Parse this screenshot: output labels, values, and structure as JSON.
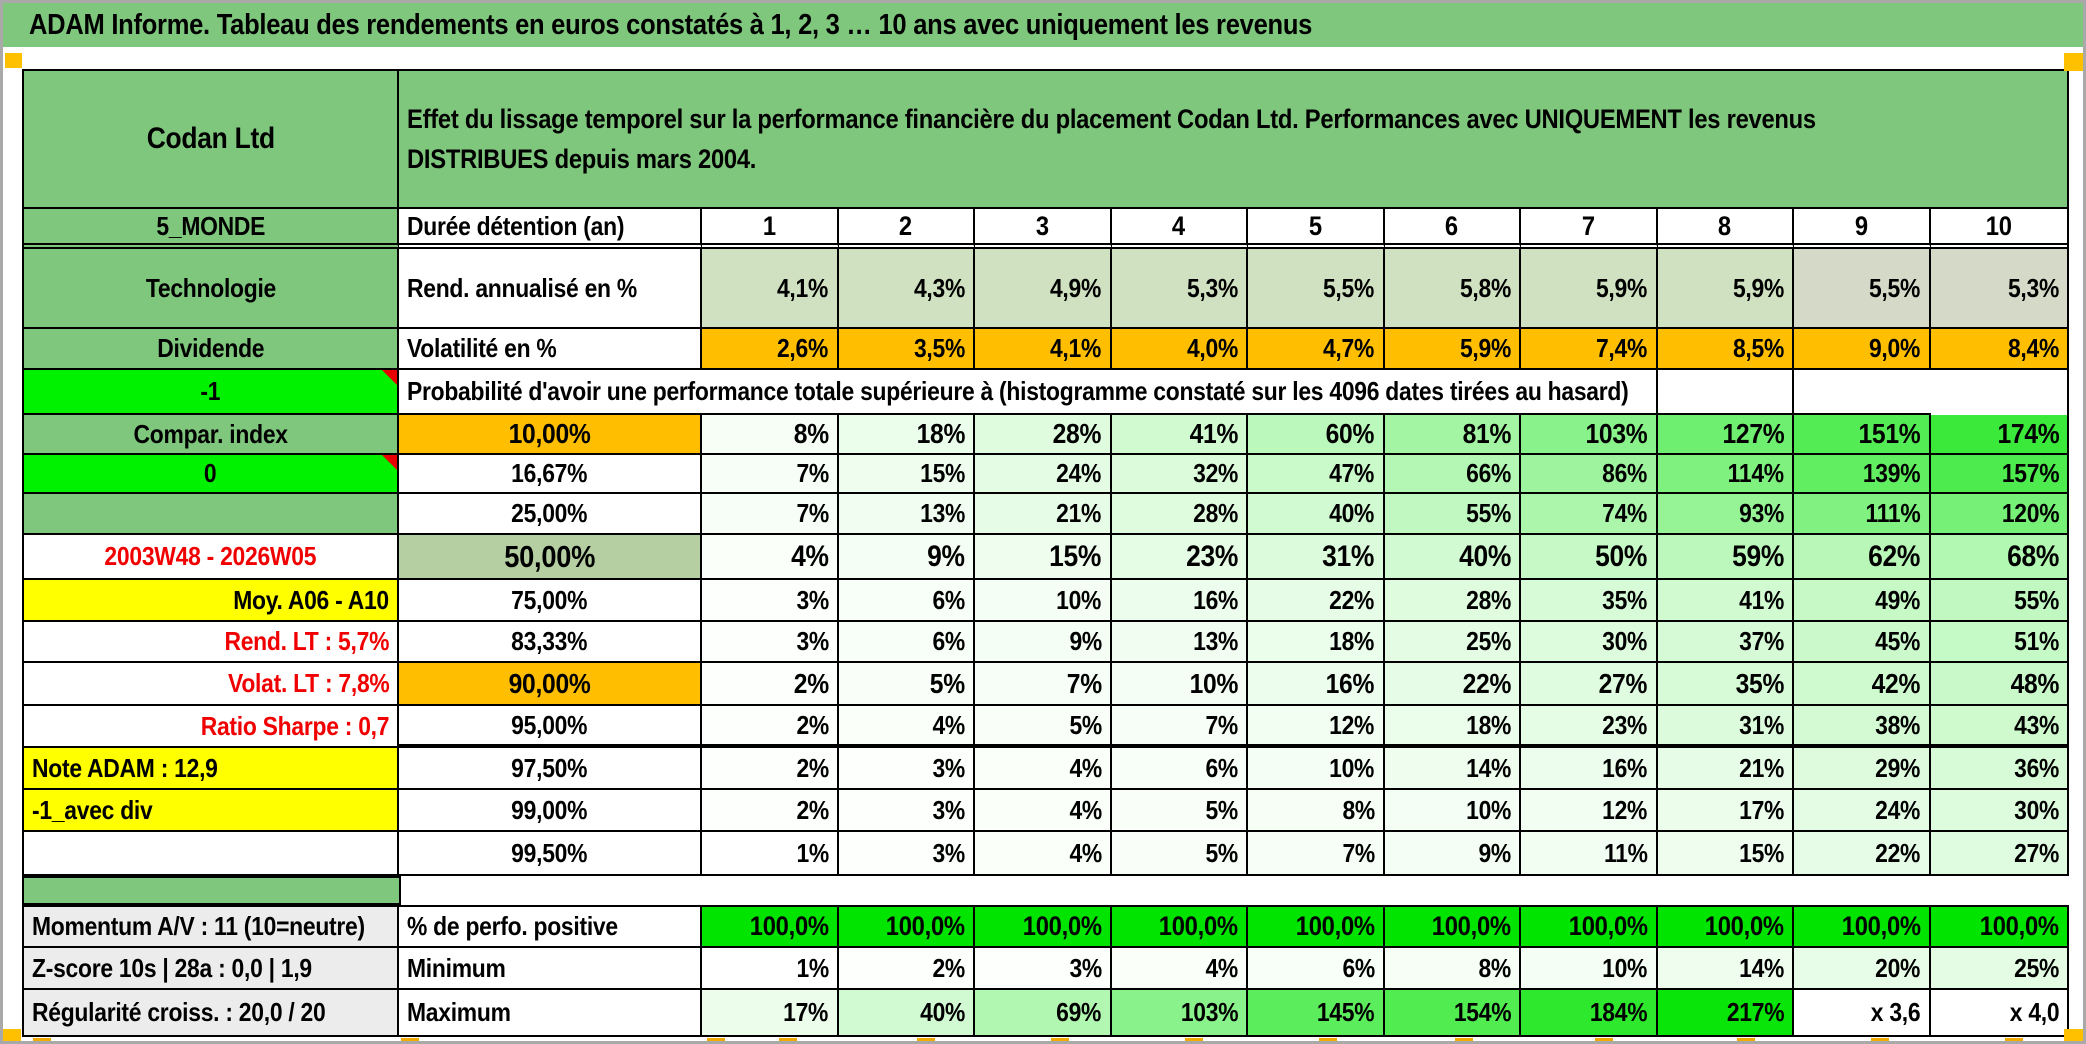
{
  "window": {
    "title": "ADAM Informe. Tableau des rendements en euros constatés à 1, 2, 3 … 10 ans avec uniquement les revenus"
  },
  "header": {
    "company": "Codan Ltd",
    "description": "Effet du lissage temporel sur la performance financière du placement Codan Ltd. Performances avec UNIQUEMENT les revenus DISTRIBUES depuis mars 2004."
  },
  "meta": {
    "index_code": "5_MONDE",
    "sector": "Technologie",
    "style": "Dividende",
    "flag_top": "-1",
    "compare_label": "Compar. index",
    "flag_zero": "0",
    "period": "2003W48 - 2026W05",
    "avg_label": "Moy. A06 - A10",
    "rend_lt": "Rend. LT :   5,7%",
    "volat_lt": "Volat. LT :   7,8%",
    "sharpe": "Ratio Sharpe :   0,7",
    "note_adam": "Note ADAM : 12,9",
    "avec_div": "-1_avec div",
    "momentum": "Momentum A/V : 11 (10=neutre)",
    "zscore": "Z-score 10s | 28a : 0,0 | 1,9",
    "regularite": "Régularité croiss. : 20,0 / 20"
  },
  "table": {
    "duration_label": "Durée détention (an)",
    "years": [
      "1",
      "2",
      "3",
      "4",
      "5",
      "6",
      "7",
      "8",
      "9",
      "10"
    ],
    "annualized_label": "Rend. annualisé en %",
    "annualized": [
      "4,1%",
      "4,3%",
      "4,9%",
      "5,3%",
      "5,5%",
      "5,8%",
      "5,9%",
      "5,9%",
      "5,5%",
      "5,3%"
    ],
    "volatility_label": "Volatilité en %",
    "volatility": [
      "2,6%",
      "3,5%",
      "4,1%",
      "4,0%",
      "4,7%",
      "5,9%",
      "7,4%",
      "8,5%",
      "9,0%",
      "8,4%"
    ],
    "probability_title": "Probabilité d'avoir une performance totale supérieure à (histogramme constaté sur les 4096 dates tirées au hasard)",
    "probability_rows": [
      {
        "threshold": "10,00%",
        "values": [
          "8%",
          "18%",
          "28%",
          "41%",
          "60%",
          "81%",
          "103%",
          "127%",
          "151%",
          "174%"
        ]
      },
      {
        "threshold": "16,67%",
        "values": [
          "7%",
          "15%",
          "24%",
          "32%",
          "47%",
          "66%",
          "86%",
          "114%",
          "139%",
          "157%"
        ]
      },
      {
        "threshold": "25,00%",
        "values": [
          "7%",
          "13%",
          "21%",
          "28%",
          "40%",
          "55%",
          "74%",
          "93%",
          "111%",
          "120%"
        ]
      },
      {
        "threshold": "50,00%",
        "values": [
          "4%",
          "9%",
          "15%",
          "23%",
          "31%",
          "40%",
          "50%",
          "59%",
          "62%",
          "68%"
        ]
      },
      {
        "threshold": "75,00%",
        "values": [
          "3%",
          "6%",
          "10%",
          "16%",
          "22%",
          "28%",
          "35%",
          "41%",
          "49%",
          "55%"
        ]
      },
      {
        "threshold": "83,33%",
        "values": [
          "3%",
          "6%",
          "9%",
          "13%",
          "18%",
          "25%",
          "30%",
          "37%",
          "45%",
          "51%"
        ]
      },
      {
        "threshold": "90,00%",
        "values": [
          "2%",
          "5%",
          "7%",
          "10%",
          "16%",
          "22%",
          "27%",
          "35%",
          "42%",
          "48%"
        ]
      },
      {
        "threshold": "95,00%",
        "values": [
          "2%",
          "4%",
          "5%",
          "7%",
          "12%",
          "18%",
          "23%",
          "31%",
          "38%",
          "43%"
        ]
      },
      {
        "threshold": "97,50%",
        "values": [
          "2%",
          "3%",
          "4%",
          "6%",
          "10%",
          "14%",
          "16%",
          "21%",
          "29%",
          "36%"
        ]
      },
      {
        "threshold": "99,00%",
        "values": [
          "2%",
          "3%",
          "4%",
          "5%",
          "8%",
          "10%",
          "12%",
          "17%",
          "24%",
          "30%"
        ]
      },
      {
        "threshold": "99,50%",
        "values": [
          "1%",
          "3%",
          "4%",
          "5%",
          "7%",
          "9%",
          "11%",
          "15%",
          "22%",
          "27%"
        ]
      }
    ],
    "positive_label": "% de perfo. positive",
    "positive": [
      "100,0%",
      "100,0%",
      "100,0%",
      "100,0%",
      "100,0%",
      "100,0%",
      "100,0%",
      "100,0%",
      "100,0%",
      "100,0%"
    ],
    "minimum_label": "Minimum",
    "minimum": [
      "1%",
      "2%",
      "3%",
      "4%",
      "6%",
      "8%",
      "10%",
      "14%",
      "20%",
      "25%"
    ],
    "maximum_label": "Maximum",
    "maximum": [
      "17%",
      "40%",
      "69%",
      "103%",
      "145%",
      "154%",
      "184%",
      "217%",
      "x 3,6",
      "x 4,0"
    ]
  },
  "colors": {
    "header_green": "#7ec77d",
    "bright_green": "#00f200",
    "sage_green": "#b5cfa3",
    "orange": "#ffbf00",
    "yellow": "#ffff00",
    "positive_green": "#00e400",
    "scale_green": "#00e100",
    "red_text": "#f00000",
    "marker_orange": "#ffc000"
  }
}
